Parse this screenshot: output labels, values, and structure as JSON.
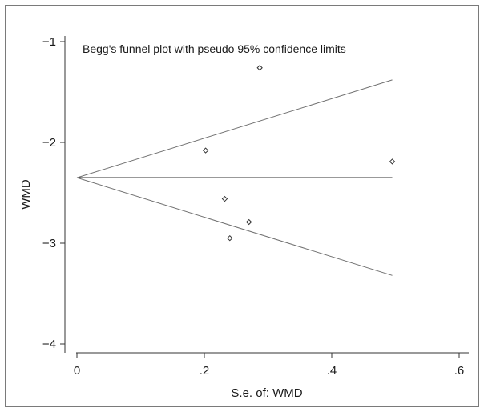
{
  "chart_data": {
    "type": "scatter",
    "title": "Begg's funnel plot with pseudo 95% confidence limits",
    "xlabel": "S.e. of: WMD",
    "ylabel": "WMD",
    "xlim": [
      0,
      0.6
    ],
    "ylim": [
      -4,
      -1
    ],
    "x_ticks": [
      0,
      0.2,
      0.4,
      0.6
    ],
    "x_tick_labels": [
      "0",
      ".2",
      ".4",
      ".6"
    ],
    "y_ticks": [
      -1,
      -2,
      -3,
      -4
    ],
    "y_tick_labels": [
      "−1",
      "−2",
      "−3",
      "−4"
    ],
    "grid": false,
    "points": [
      {
        "x": 0.202,
        "y": -2.08
      },
      {
        "x": 0.232,
        "y": -2.56
      },
      {
        "x": 0.24,
        "y": -2.95
      },
      {
        "x": 0.27,
        "y": -2.79
      },
      {
        "x": 0.287,
        "y": -1.26
      },
      {
        "x": 0.495,
        "y": -2.19
      }
    ],
    "pooled_estimate": -2.35,
    "funnel_x_max": 0.495,
    "funnel_upper_at_max": -1.38,
    "funnel_lower_at_max": -3.32
  }
}
